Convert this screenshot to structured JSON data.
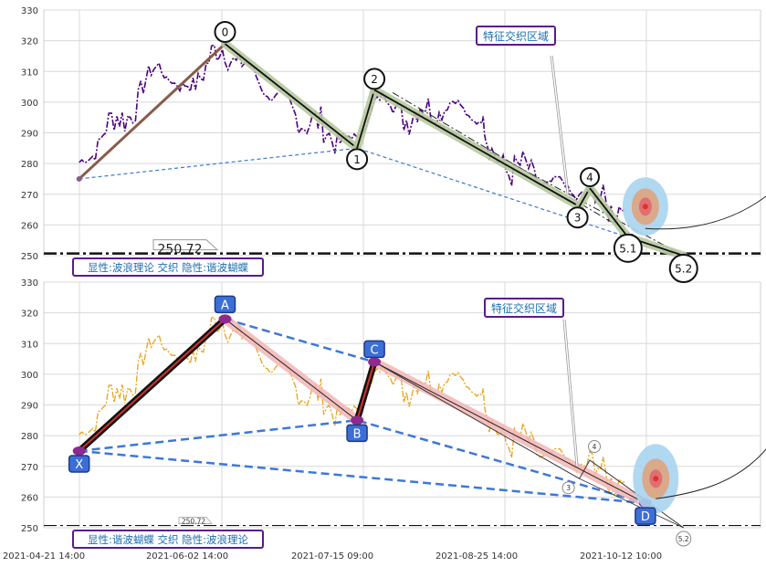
{
  "chart_data": [
    {
      "type": "line",
      "panel": "top",
      "ylim": [
        250,
        330
      ],
      "y_ticks": [
        "330",
        "320",
        "310",
        "300",
        "290",
        "280",
        "270",
        "260",
        "250"
      ],
      "price_series_color": "#4b0082",
      "wave_points": [
        {
          "label": "0",
          "x": "2021-06-02",
          "y": 319
        },
        {
          "label": "1",
          "x": "2021-07-10",
          "y": 285
        },
        {
          "label": "2",
          "x": "2021-07-15",
          "y": 304
        },
        {
          "label": "3",
          "x": "2021-09-12",
          "y": 266
        },
        {
          "label": "4",
          "x": "2021-09-15",
          "y": 272
        },
        {
          "label": "5.1",
          "x": "2021-09-26",
          "y": 256
        },
        {
          "label": "5.2",
          "x": "2021-10-12",
          "y": 250
        }
      ],
      "start_point": {
        "x": "2021-04-21",
        "y": 275
      },
      "level_line": {
        "value": "250.72",
        "label": "250.72"
      },
      "annotation": "特征交织区域",
      "caption": "显性:波浪理论 交织 隐性:谐波蝴蝶"
    },
    {
      "type": "line",
      "panel": "bottom",
      "ylim": [
        250,
        330
      ],
      "y_ticks": [
        "330",
        "320",
        "310",
        "300",
        "290",
        "280",
        "270",
        "260",
        "250"
      ],
      "price_series_color": "#e8a317",
      "harmonic_points": [
        {
          "label": "X",
          "x": "2021-04-21",
          "y": 275
        },
        {
          "label": "A",
          "x": "2021-06-02",
          "y": 318
        },
        {
          "label": "B",
          "x": "2021-07-10",
          "y": 285
        },
        {
          "label": "C",
          "x": "2021-07-15",
          "y": 304
        },
        {
          "label": "D",
          "x": "2021-10-01",
          "y": 258
        }
      ],
      "wave_marks": [
        "3",
        "4",
        "5.2"
      ],
      "level_line": {
        "value": "250.72",
        "label": "250.72"
      },
      "annotation": "特征交织区域",
      "caption": "显性:谐波蝴蝶 交织 隐性:波浪理论"
    }
  ],
  "x_tick_labels": [
    "2021-04-21 14:00",
    "2021-06-02 14:00",
    "2021-07-15 09:00",
    "2021-08-25 14:00",
    "2021-10-12 10:00"
  ],
  "colors": {
    "label_border": "#5a1a8a",
    "label_text": "#1e6fb0",
    "harmonic_box_fill": "#3c6fd6",
    "dashed_blue": "#3c78d8",
    "wave_fill": "#b7c9a0",
    "harmonic_fill": "#f3b6b6",
    "target_outer": "#a8d4f0",
    "target_mid": "#d9a98a",
    "target_dot": "#e03030"
  }
}
